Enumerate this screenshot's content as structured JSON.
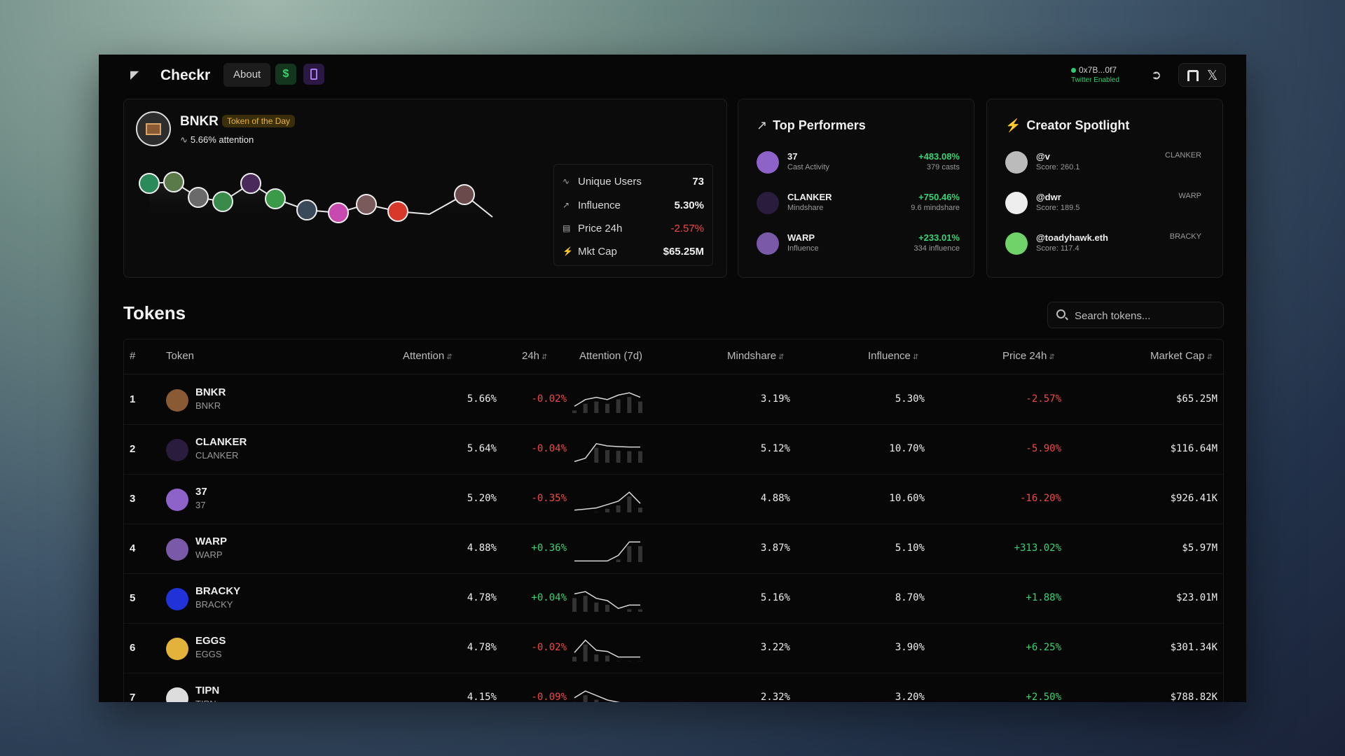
{
  "header": {
    "brand": "Checkr",
    "about": "About",
    "dollar": "$",
    "wallet_address": "0x7B...0f7",
    "wallet_status": "Twitter Enabled"
  },
  "hero": {
    "name": "BNKR",
    "badge": "Token of the Day",
    "attention": "5.66% attention",
    "stats": [
      {
        "label": "Unique Users",
        "value": "73",
        "neg": false
      },
      {
        "label": "Influence",
        "value": "5.30%",
        "neg": false
      },
      {
        "label": "Price 24h",
        "value": "-2.57%",
        "neg": true
      },
      {
        "label": "Mkt Cap",
        "value": "$65.25M",
        "neg": false
      }
    ]
  },
  "top_performers": {
    "title": "Top Performers",
    "items": [
      {
        "name": "37",
        "sub": "Cast Activity",
        "pct": "+483.08%",
        "count": "379 casts",
        "color": "#8e63c9"
      },
      {
        "name": "CLANKER",
        "sub": "Mindshare",
        "pct": "+750.46%",
        "count": "9.6 mindshare",
        "color": "#2a1c3c"
      },
      {
        "name": "WARP",
        "sub": "Influence",
        "pct": "+233.01%",
        "count": "334 influence",
        "color": "#7a5aa8"
      }
    ]
  },
  "creator_spotlight": {
    "title": "Creator Spotlight",
    "items": [
      {
        "name": "@v",
        "score": "Score: 260.1",
        "tag": "CLANKER",
        "color": "#bbbbbb"
      },
      {
        "name": "@dwr",
        "score": "Score: 189.5",
        "tag": "WARP",
        "color": "#eeeeee"
      },
      {
        "name": "@toadyhawk.eth",
        "score": "Score: 117.4",
        "tag": "BRACKY",
        "color": "#6fd36a"
      }
    ]
  },
  "tokens": {
    "title": "Tokens",
    "search_placeholder": "Search tokens...",
    "columns": {
      "rank": "#",
      "token": "Token",
      "attention": "Attention",
      "change24h": "24h",
      "attention7d": "Attention (7d)",
      "mindshare": "Mindshare",
      "influence": "Influence",
      "price24h": "Price 24h",
      "marketcap": "Market Cap"
    },
    "rows": [
      {
        "rank": "1",
        "name": "BNKR",
        "symbol": "BNKR",
        "attention": "5.66%",
        "change": "-0.02%",
        "mindshare": "3.19%",
        "influence": "5.30%",
        "price": "-2.57%",
        "mcap": "$65.25M",
        "color": "#8a5a34",
        "spark": [
          0.3,
          0.6,
          0.7,
          0.6,
          0.8,
          0.9,
          0.7
        ]
      },
      {
        "rank": "2",
        "name": "CLANKER",
        "symbol": "CLANKER",
        "attention": "5.64%",
        "change": "-0.04%",
        "mindshare": "5.12%",
        "influence": "10.70%",
        "price": "-5.90%",
        "mcap": "$116.64M",
        "color": "#2a1c3c",
        "spark": [
          0.05,
          0.2,
          0.85,
          0.75,
          0.72,
          0.7,
          0.7
        ]
      },
      {
        "rank": "3",
        "name": "37",
        "symbol": "37",
        "attention": "5.20%",
        "change": "-0.35%",
        "mindshare": "4.88%",
        "influence": "10.60%",
        "price": "-16.20%",
        "mcap": "$926.41K",
        "color": "#8e63c9",
        "spark": [
          0.1,
          0.15,
          0.2,
          0.35,
          0.5,
          0.9,
          0.4
        ]
      },
      {
        "rank": "4",
        "name": "WARP",
        "symbol": "WARP",
        "attention": "4.88%",
        "change": "+0.36%",
        "mindshare": "3.87%",
        "influence": "5.10%",
        "price": "+313.02%",
        "mcap": "$5.97M",
        "color": "#7a5aa8",
        "spark": [
          0.05,
          0.05,
          0.05,
          0.05,
          0.3,
          0.9,
          0.9
        ]
      },
      {
        "rank": "5",
        "name": "BRACKY",
        "symbol": "BRACKY",
        "attention": "4.78%",
        "change": "+0.04%",
        "mindshare": "5.16%",
        "influence": "8.70%",
        "price": "+1.88%",
        "mcap": "$23.01M",
        "color": "#2033d8",
        "spark": [
          0.8,
          0.9,
          0.6,
          0.5,
          0.15,
          0.3,
          0.3
        ]
      },
      {
        "rank": "6",
        "name": "EGGS",
        "symbol": "EGGS",
        "attention": "4.78%",
        "change": "-0.02%",
        "mindshare": "3.22%",
        "influence": "3.90%",
        "price": "+6.25%",
        "mcap": "$301.34K",
        "color": "#e3b23a",
        "spark": [
          0.4,
          0.95,
          0.5,
          0.45,
          0.2,
          0.2,
          0.2
        ]
      },
      {
        "rank": "7",
        "name": "TIPN",
        "symbol": "TIPN",
        "attention": "4.15%",
        "change": "-0.09%",
        "mindshare": "2.32%",
        "influence": "3.20%",
        "price": "+2.50%",
        "mcap": "$788.82K",
        "color": "#dddddd",
        "spark": [
          0.6,
          0.9,
          0.7,
          0.5,
          0.4,
          0.3,
          0.3
        ]
      }
    ]
  }
}
